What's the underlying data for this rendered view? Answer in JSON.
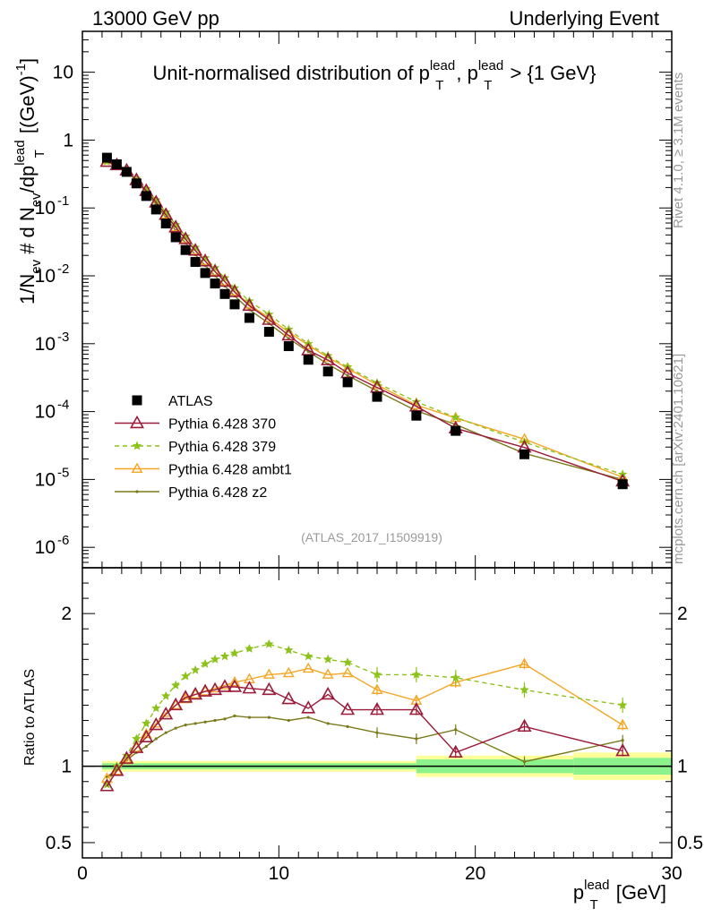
{
  "header": {
    "left": "13000 GeV pp",
    "right": "Underlying Event"
  },
  "side_labels": {
    "rivet": "Rivet 4.1.0, ≥ 3.1M events",
    "mcplots": "mcplots.cern.ch [arXiv:2401.10621]"
  },
  "reference": "(ATLAS_2017_I1509919)",
  "main_title": {
    "prefix": "Unit-normalised distribution of p",
    "sup1": "lead",
    "sub1": "T",
    "middle": ", p",
    "sup2": "lead",
    "sub2": "T",
    "suffix": " > {1 GeV}"
  },
  "y_axis_top": {
    "part1": "1/N",
    "sub_ev1": "ev",
    "part2": " # d N",
    "sub_ev2": "ev",
    "part3": "/dp",
    "sup_lead": "lead",
    "sub_T": "T",
    "part4": " [(GeV)",
    "sup_minus1": "-1",
    "part5": "]"
  },
  "y_axis_ratio": "Ratio to ATLAS",
  "x_axis": {
    "p": "p",
    "sup": "lead",
    "sub": "T",
    "unit": " [GeV]"
  },
  "top_ticks": [
    {
      "value": 10,
      "mant": "10",
      "exp": ""
    },
    {
      "value": 1,
      "mant": "1",
      "exp": ""
    },
    {
      "value": 0.1,
      "mant": "10",
      "exp": "-1"
    },
    {
      "value": 0.01,
      "mant": "10",
      "exp": "-2"
    },
    {
      "value": 0.001,
      "mant": "10",
      "exp": "-3"
    },
    {
      "value": 0.0001,
      "mant": "10",
      "exp": "-4"
    },
    {
      "value": 1e-05,
      "mant": "10",
      "exp": "-5"
    },
    {
      "value": 1e-06,
      "mant": "10",
      "exp": "-6"
    }
  ],
  "ratio_ticks": [
    "0.5",
    "1",
    "2"
  ],
  "x_ticks": [
    "0",
    "10",
    "20",
    "30"
  ],
  "legend": [
    {
      "key": "atlas",
      "label": "ATLAS"
    },
    {
      "key": "s370",
      "label": "Pythia 6.428 370"
    },
    {
      "key": "s379",
      "label": "Pythia 6.428 379"
    },
    {
      "key": "ambt1",
      "label": "Pythia 6.428 ambt1"
    },
    {
      "key": "z2",
      "label": "Pythia 6.428 z2"
    }
  ],
  "colors": {
    "atlas": "#000000",
    "s370": "#9b1b3a",
    "s379": "#8cc21b",
    "ambt1": "#f5a623",
    "z2": "#7a7a1a",
    "band_outer": "#ffff99",
    "band_inner": "#8cf28c"
  },
  "chart_data": {
    "type": "scatter",
    "xlim": [
      0,
      30
    ],
    "ylim_top": [
      5e-07,
      40
    ],
    "ylim_ratio": [
      0.4,
      2.3
    ],
    "x": [
      1.25,
      1.75,
      2.25,
      2.75,
      3.25,
      3.75,
      4.25,
      4.75,
      5.25,
      5.75,
      6.25,
      6.75,
      7.25,
      7.75,
      8.5,
      9.5,
      10.5,
      11.5,
      12.5,
      13.5,
      15,
      17,
      19,
      22.5,
      27.5
    ],
    "series": [
      {
        "key": "atlas",
        "name": "ATLAS",
        "values": [
          0.55,
          0.44,
          0.34,
          0.23,
          0.15,
          0.095,
          0.059,
          0.037,
          0.024,
          0.016,
          0.011,
          0.0077,
          0.0054,
          0.0038,
          0.0024,
          0.0015,
          0.00092,
          0.00058,
          0.00039,
          0.00027,
          0.000165,
          8.7e-05,
          5.2e-05,
          2.35e-05,
          8.5e-06
        ]
      },
      {
        "key": "s370",
        "name": "Pythia 6.428 370",
        "ratio": [
          0.87,
          0.97,
          1.05,
          1.12,
          1.19,
          1.27,
          1.34,
          1.4,
          1.45,
          1.47,
          1.49,
          1.5,
          1.52,
          1.52,
          1.51,
          1.5,
          1.44,
          1.38,
          1.47,
          1.37,
          1.37,
          1.37,
          1.09,
          1.26,
          1.1
        ]
      },
      {
        "key": "s379",
        "name": "Pythia 6.428 379",
        "ratio": [
          0.88,
          1.0,
          1.07,
          1.18,
          1.28,
          1.38,
          1.46,
          1.53,
          1.59,
          1.63,
          1.67,
          1.7,
          1.72,
          1.74,
          1.77,
          1.8,
          1.76,
          1.72,
          1.7,
          1.68,
          1.6,
          1.6,
          1.58,
          1.5,
          1.4
        ]
      },
      {
        "key": "ambt1",
        "name": "Pythia 6.428 ambt1",
        "ratio": [
          0.92,
          0.97,
          1.04,
          1.12,
          1.21,
          1.28,
          1.35,
          1.4,
          1.44,
          1.47,
          1.49,
          1.51,
          1.53,
          1.55,
          1.57,
          1.6,
          1.61,
          1.64,
          1.6,
          1.61,
          1.5,
          1.43,
          1.55,
          1.67,
          1.27
        ]
      },
      {
        "key": "z2",
        "name": "Pythia 6.428 z2",
        "ratio": [
          0.93,
          0.98,
          1.04,
          1.09,
          1.13,
          1.18,
          1.22,
          1.25,
          1.27,
          1.28,
          1.29,
          1.3,
          1.31,
          1.33,
          1.32,
          1.32,
          1.3,
          1.32,
          1.28,
          1.26,
          1.22,
          1.18,
          1.24,
          1.03,
          1.17
        ]
      }
    ],
    "ratio_bands": [
      {
        "x0": 1,
        "x1": 17,
        "outer": 0.035,
        "inner": 0.02
      },
      {
        "x0": 17,
        "x1": 25,
        "outer": 0.07,
        "inner": 0.045
      },
      {
        "x0": 25,
        "x1": 30,
        "outer": 0.09,
        "inner": 0.055
      }
    ]
  }
}
